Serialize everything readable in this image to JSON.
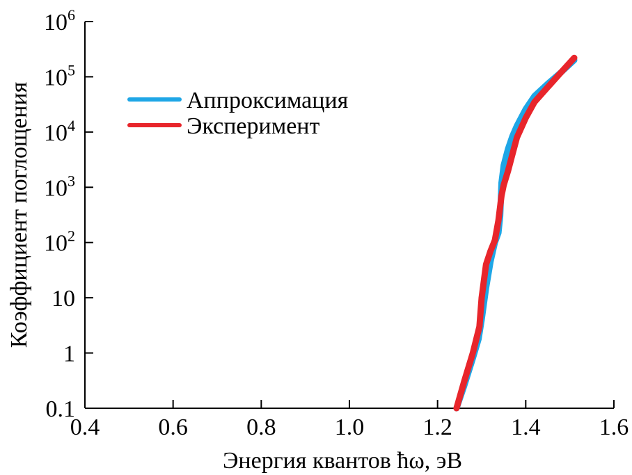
{
  "chart_data": {
    "type": "line",
    "xlabel": "Энергия квантов ħω, эВ",
    "ylabel": "Коэффициент поглощения",
    "xlim": [
      0.4,
      1.6
    ],
    "ylim": [
      0.1,
      1000000
    ],
    "yscale": "log",
    "x_ticks": [
      {
        "value": 0.4,
        "label": "0.4"
      },
      {
        "value": 0.6,
        "label": "0.6"
      },
      {
        "value": 0.8,
        "label": "0.8"
      },
      {
        "value": 1.0,
        "label": "1.0"
      },
      {
        "value": 1.2,
        "label": "1.2"
      },
      {
        "value": 1.4,
        "label": "1.4"
      },
      {
        "value": 1.6,
        "label": "1.6"
      }
    ],
    "y_ticks": [
      {
        "value": 0.1,
        "label": "0.1",
        "base": "",
        "exp": ""
      },
      {
        "value": 1,
        "label": "1",
        "base": "",
        "exp": ""
      },
      {
        "value": 10,
        "label": "10",
        "base": "",
        "exp": ""
      },
      {
        "value": 100,
        "label": "",
        "base": "10",
        "exp": "2"
      },
      {
        "value": 1000,
        "label": "",
        "base": "10",
        "exp": "3"
      },
      {
        "value": 10000,
        "label": "",
        "base": "10",
        "exp": "4"
      },
      {
        "value": 100000,
        "label": "",
        "base": "10",
        "exp": "5"
      },
      {
        "value": 1000000,
        "label": "",
        "base": "10",
        "exp": "6"
      }
    ],
    "grid": false,
    "legend_position": "top-left",
    "series": [
      {
        "name": "Аппроксимация",
        "color": "#1ea6e6",
        "points": [
          [
            1.243,
            0.1
          ],
          [
            1.26,
            0.25
          ],
          [
            1.28,
            0.8
          ],
          [
            1.293,
            1.8
          ],
          [
            1.3,
            4
          ],
          [
            1.31,
            15
          ],
          [
            1.32,
            45
          ],
          [
            1.33,
            100
          ],
          [
            1.338,
            150
          ],
          [
            1.342,
            300
          ],
          [
            1.345,
            1200
          ],
          [
            1.35,
            2500
          ],
          [
            1.36,
            5000
          ],
          [
            1.37,
            8500
          ],
          [
            1.38,
            13000
          ],
          [
            1.4,
            26000
          ],
          [
            1.42,
            45000
          ],
          [
            1.45,
            75000
          ],
          [
            1.48,
            120000
          ],
          [
            1.51,
            200000
          ]
        ]
      },
      {
        "name": "Эксперимент",
        "color": "#e8252b",
        "points": [
          [
            1.243,
            0.1
          ],
          [
            1.26,
            0.3
          ],
          [
            1.28,
            1.0
          ],
          [
            1.295,
            3
          ],
          [
            1.3,
            10
          ],
          [
            1.31,
            40
          ],
          [
            1.32,
            70
          ],
          [
            1.33,
            110
          ],
          [
            1.338,
            250
          ],
          [
            1.345,
            700
          ],
          [
            1.35,
            1100
          ],
          [
            1.36,
            2000
          ],
          [
            1.37,
            4000
          ],
          [
            1.38,
            8000
          ],
          [
            1.4,
            18000
          ],
          [
            1.42,
            35000
          ],
          [
            1.45,
            65000
          ],
          [
            1.48,
            120000
          ],
          [
            1.51,
            220000
          ]
        ]
      }
    ]
  }
}
